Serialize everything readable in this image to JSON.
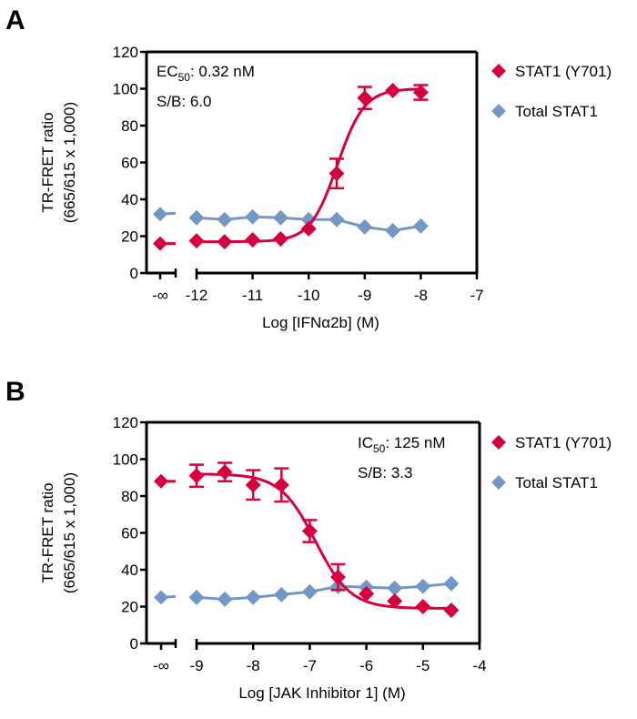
{
  "colors": {
    "phospho": "#d6003d",
    "total": "#7398c6",
    "axis": "#000000"
  },
  "chart_data": [
    {
      "type": "scatter",
      "panel": "A",
      "title": "",
      "xlabel": "Log [IFNα2b] (M)",
      "ylabel_line1": "TR-FRET ratio",
      "ylabel_line2": "(665/615 x 1,000)",
      "ylim": [
        0,
        120
      ],
      "xlim": [
        -12,
        -7
      ],
      "yticks": [
        0,
        20,
        40,
        60,
        80,
        100,
        120
      ],
      "xticks": [
        -12,
        -11,
        -10,
        -9,
        -8,
        -7
      ],
      "xtick_labels": [
        "-12",
        "-11",
        "-10",
        "-9",
        "-8",
        "-7"
      ],
      "neg_inf_label": "-∞",
      "annotation": {
        "line1_prefix": "EC",
        "line1_sub": "50",
        "line1_suffix": ": 0.32 nM",
        "line2": "S/B: 6.0"
      },
      "fit": {
        "bottom": 17,
        "top": 100,
        "logEC50": -9.49,
        "hill": 1.8
      },
      "series": [
        {
          "name": "STAT1 (Y701)",
          "color_key": "phospho",
          "neg_inf": 16,
          "x": [
            -12,
            -11.5,
            -11,
            -10.5,
            -10,
            -9.5,
            -9,
            -8.5,
            -8
          ],
          "y": [
            17.5,
            17,
            18,
            18.5,
            24,
            54,
            95,
            99,
            98
          ],
          "err": [
            0,
            0,
            0,
            0,
            0,
            8,
            6,
            0,
            4
          ]
        },
        {
          "name": "Total STAT1",
          "color_key": "total",
          "neg_inf": 32,
          "x": [
            -12,
            -11.5,
            -11,
            -10.5,
            -10,
            -9.5,
            -9,
            -8.5,
            -8
          ],
          "y": [
            30,
            29,
            30.5,
            30,
            29,
            29,
            25,
            23,
            25.5
          ],
          "err": [
            0,
            0,
            0,
            0,
            0,
            0,
            0,
            0,
            0
          ]
        }
      ],
      "legend_position": "right"
    },
    {
      "type": "scatter",
      "panel": "B",
      "title": "",
      "xlabel": "Log [JAK Inhibitor 1] (M)",
      "ylabel_line1": "TR-FRET ratio",
      "ylabel_line2": "(665/615 x 1,000)",
      "ylim": [
        0,
        120
      ],
      "xlim": [
        -9,
        -4
      ],
      "yticks": [
        0,
        20,
        40,
        60,
        80,
        100,
        120
      ],
      "xticks": [
        -9,
        -8,
        -7,
        -6,
        -5,
        -4
      ],
      "xtick_labels": [
        "-9",
        "-8",
        "-7",
        "-6",
        "-5",
        "-4"
      ],
      "neg_inf_label": "-∞",
      "annotation": {
        "line1_prefix": "IC",
        "line1_sub": "50",
        "line1_suffix": ": 125 nM",
        "line2": "S/B: 3.3"
      },
      "fit": {
        "bottom": 19,
        "top": 92,
        "logEC50": -6.9,
        "hill": -1.4
      },
      "series": [
        {
          "name": "STAT1 (Y701)",
          "color_key": "phospho",
          "neg_inf": 88,
          "x": [
            -9,
            -8.5,
            -8,
            -7.5,
            -7,
            -6.5,
            -6,
            -5.5,
            -5,
            -4.5
          ],
          "y": [
            91,
            93,
            86,
            86,
            61,
            36,
            27,
            23,
            20,
            18
          ],
          "err": [
            6,
            5,
            8,
            9,
            6,
            7,
            0,
            0,
            0,
            0
          ]
        },
        {
          "name": "Total STAT1",
          "color_key": "total",
          "neg_inf": 25,
          "x": [
            -9,
            -8.5,
            -8,
            -7.5,
            -7,
            -6.5,
            -6,
            -5.5,
            -5,
            -4.5
          ],
          "y": [
            25,
            24,
            25,
            26.5,
            28,
            31,
            30.5,
            30,
            31,
            32.5
          ],
          "err": [
            0,
            0,
            0,
            0,
            0,
            0,
            0,
            0,
            0,
            0
          ]
        }
      ],
      "legend_position": "right"
    }
  ]
}
